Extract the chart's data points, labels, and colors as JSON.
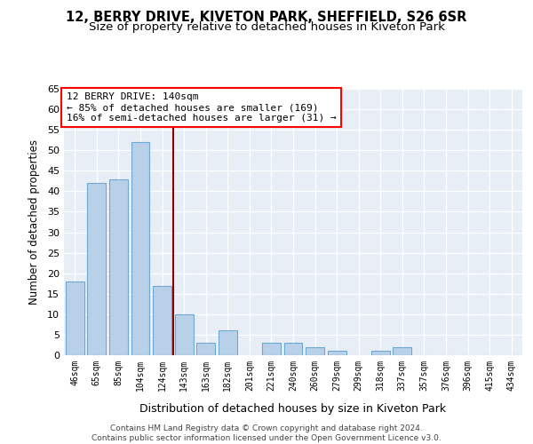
{
  "title_line1": "12, BERRY DRIVE, KIVETON PARK, SHEFFIELD, S26 6SR",
  "title_line2": "Size of property relative to detached houses in Kiveton Park",
  "xlabel": "Distribution of detached houses by size in Kiveton Park",
  "ylabel": "Number of detached properties",
  "bar_color": "#b8d0e8",
  "bar_edge_color": "#6fa8d0",
  "bg_color": "#e8eef6",
  "categories": [
    "46sqm",
    "65sqm",
    "85sqm",
    "104sqm",
    "124sqm",
    "143sqm",
    "163sqm",
    "182sqm",
    "201sqm",
    "221sqm",
    "240sqm",
    "260sqm",
    "279sqm",
    "299sqm",
    "318sqm",
    "337sqm",
    "357sqm",
    "376sqm",
    "396sqm",
    "415sqm",
    "434sqm"
  ],
  "values": [
    18,
    42,
    43,
    52,
    17,
    10,
    3,
    6,
    0,
    3,
    3,
    2,
    1,
    0,
    1,
    2,
    0,
    0,
    0,
    0,
    0
  ],
  "ylim": [
    0,
    65
  ],
  "yticks": [
    0,
    5,
    10,
    15,
    20,
    25,
    30,
    35,
    40,
    45,
    50,
    55,
    60,
    65
  ],
  "vline_x": 4.5,
  "annotation_title": "12 BERRY DRIVE: 140sqm",
  "annotation_line1": "← 85% of detached houses are smaller (169)",
  "annotation_line2": "16% of semi-detached houses are larger (31) →",
  "footer_line1": "Contains HM Land Registry data © Crown copyright and database right 2024.",
  "footer_line2": "Contains public sector information licensed under the Open Government Licence v3.0.",
  "title_fontsize": 10.5,
  "subtitle_fontsize": 9.5
}
